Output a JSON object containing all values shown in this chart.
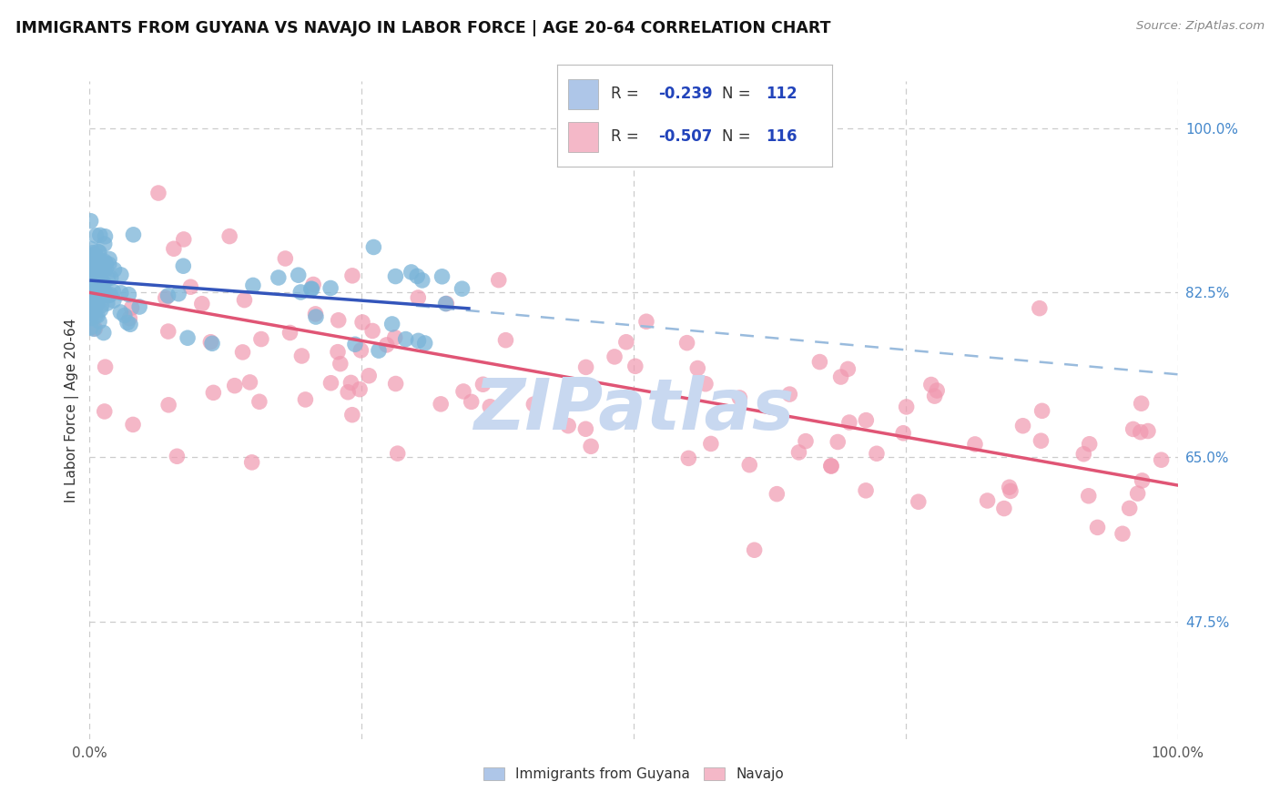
{
  "title": "IMMIGRANTS FROM GUYANA VS NAVAJO IN LABOR FORCE | AGE 20-64 CORRELATION CHART",
  "source": "Source: ZipAtlas.com",
  "ylabel": "In Labor Force | Age 20-64",
  "xlim": [
    0.0,
    1.0
  ],
  "ylim": [
    0.35,
    1.05
  ],
  "ytick_values_right": [
    1.0,
    0.825,
    0.65,
    0.475
  ],
  "ytick_labels_right": [
    "100.0%",
    "82.5%",
    "65.0%",
    "47.5%"
  ],
  "xtick_vals": [
    0.0,
    0.25,
    0.5,
    0.75,
    1.0
  ],
  "xtick_labels": [
    "0.0%",
    "",
    "",
    "",
    "100.0%"
  ],
  "blue_scatter_color": "#7ab4d8",
  "pink_scatter_color": "#f099b0",
  "blue_line_color": "#3355bb",
  "pink_line_color": "#e05575",
  "blue_dash_color": "#99bbdd",
  "legend_box_color_blue": "#aec6e8",
  "legend_box_color_pink": "#f4b8c8",
  "legend_text_color": "#333333",
  "legend_value_color": "#2244bb",
  "right_tick_color": "#4488cc",
  "watermark_text": "ZIPatlas",
  "watermark_color": "#c8d8f0",
  "grid_color": "#cccccc",
  "title_color": "#111111",
  "source_color": "#888888",
  "blue_R": "-0.239",
  "blue_N": "112",
  "pink_R": "-0.507",
  "pink_N": "116",
  "blue_line_xstart": 0.0,
  "blue_line_xend": 0.35,
  "blue_line_ystart": 0.838,
  "blue_line_yend": 0.808,
  "blue_dash_xstart": 0.3,
  "blue_dash_xend": 1.0,
  "blue_dash_ystart": 0.811,
  "blue_dash_yend": 0.738,
  "pink_line_xstart": 0.0,
  "pink_line_xend": 1.0,
  "pink_line_ystart": 0.825,
  "pink_line_yend": 0.62
}
